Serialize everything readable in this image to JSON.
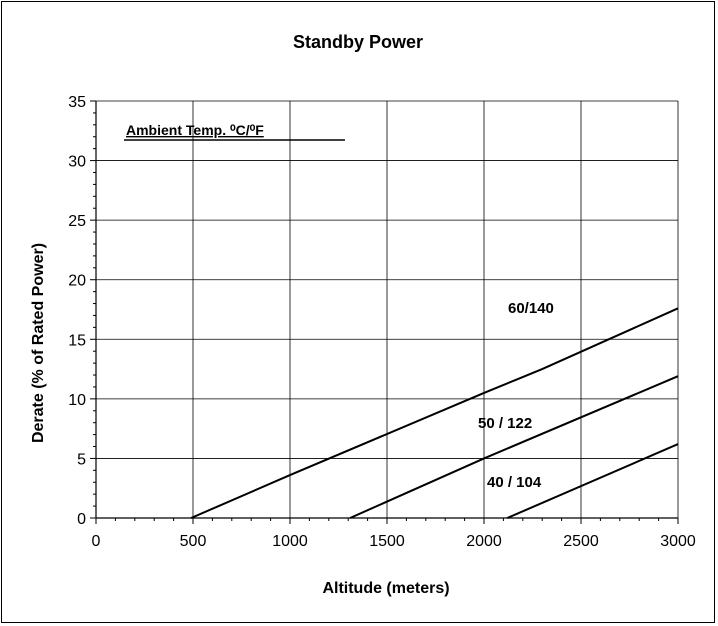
{
  "chart_data": {
    "type": "line",
    "title": "Standby Power",
    "xlabel": "Altitude (meters)",
    "ylabel": "Derate (% of Rated Power)",
    "xlim": [
      0,
      3000
    ],
    "ylim": [
      0,
      35
    ],
    "x_ticks": [
      "0",
      "500",
      "1000",
      "1500",
      "2000",
      "2500",
      "3000"
    ],
    "y_ticks": [
      "0",
      "5",
      "10",
      "15",
      "20",
      "25",
      "30",
      "35"
    ],
    "grid": true,
    "legend_title": "Ambient Temp. ⁰C/⁰F",
    "series": [
      {
        "name": "60/140",
        "x": [
          490,
          1000,
          2000,
          2300,
          3000
        ],
        "y": [
          0,
          3.6,
          10.5,
          12.5,
          17.6
        ]
      },
      {
        "name": "50 / 122",
        "x": [
          1310,
          2000,
          3000
        ],
        "y": [
          0,
          5.0,
          11.9
        ]
      },
      {
        "name": "40 / 104",
        "x": [
          2120,
          3000
        ],
        "y": [
          0,
          6.2
        ]
      }
    ]
  }
}
